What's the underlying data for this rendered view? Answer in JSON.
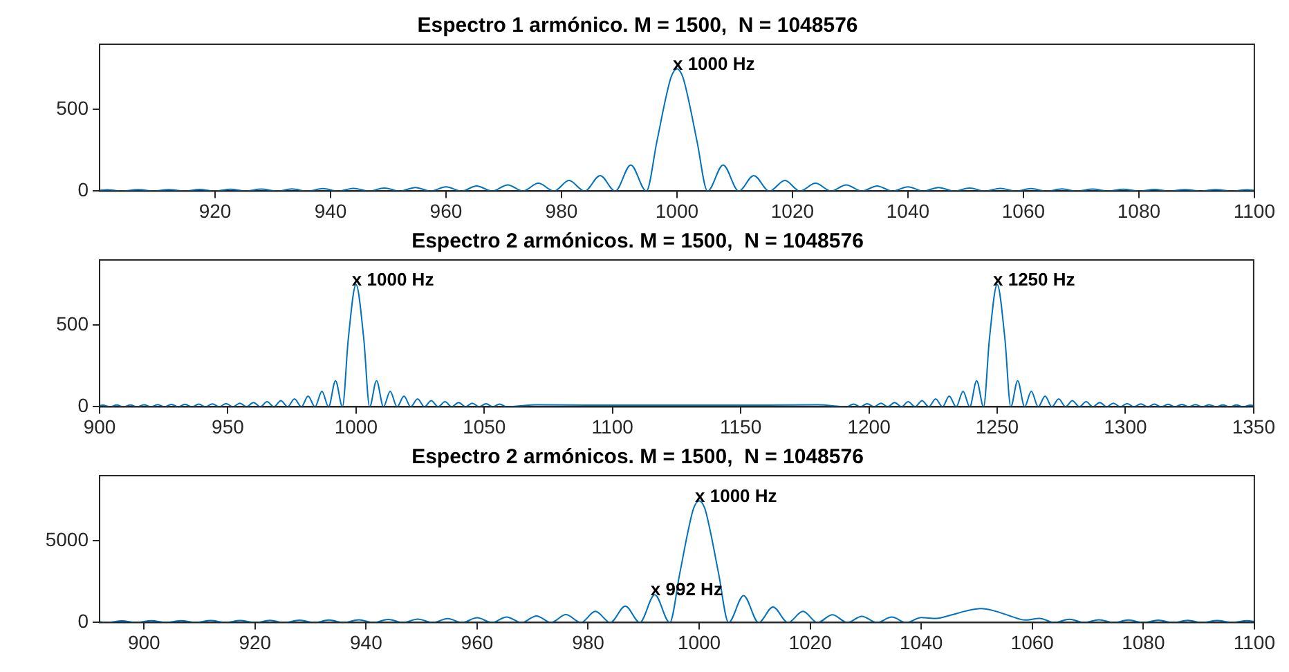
{
  "chart_data": [
    {
      "type": "line",
      "title": "Espectro 1 armónico. M = 1500,  N = 1048576",
      "xlim": [
        900,
        1100
      ],
      "xticks": [
        920,
        940,
        960,
        980,
        1000,
        1020,
        1040,
        1060,
        1080,
        1100
      ],
      "ylim": [
        0,
        900
      ],
      "yticks": [
        0,
        500
      ],
      "grid": false,
      "legend": false,
      "marker": "none",
      "annotations": [
        {
          "text": "x 1000 Hz",
          "x": 1000,
          "y": 750
        }
      ],
      "series": [
        {
          "color": "#0072bd",
          "x": [
            900,
            901.3,
            904,
            906.7,
            909.3,
            912,
            914.7,
            917.3,
            920,
            922.7,
            925.3,
            928,
            930.7,
            933.3,
            936,
            938.7,
            941.3,
            944,
            946.7,
            949.3,
            952,
            954.7,
            957.3,
            960,
            962.7,
            965.3,
            968,
            970.7,
            973.3,
            976,
            978.7,
            981.3,
            984,
            986.7,
            989.3,
            992,
            994.7,
            996.5,
            998,
            999,
            1000,
            1001,
            1002,
            1003.5,
            1005.3,
            1008,
            1010.7,
            1013.3,
            1016,
            1018.7,
            1021.3,
            1024,
            1026.7,
            1029.3,
            1032,
            1034.7,
            1037.3,
            1040,
            1042.7,
            1045.3,
            1048,
            1050.7,
            1053.3,
            1056,
            1058.7,
            1061.3,
            1064,
            1066.7,
            1069.3,
            1072,
            1074.7,
            1077.3,
            1080,
            1082.7,
            1085.3,
            1088,
            1090.7,
            1093.3,
            1096,
            1098.7,
            1100
          ],
          "values": [
            5,
            8,
            0,
            9,
            0,
            9,
            0,
            10,
            0,
            11,
            0,
            12,
            0,
            13,
            0,
            15,
            0,
            17,
            0,
            19,
            0,
            22,
            0,
            26,
            0,
            31,
            0,
            38,
            0,
            48,
            0,
            65,
            0,
            95,
            0,
            160,
            0,
            300,
            560,
            700,
            750,
            700,
            560,
            300,
            0,
            160,
            0,
            95,
            0,
            65,
            0,
            48,
            0,
            38,
            0,
            31,
            0,
            26,
            0,
            22,
            0,
            19,
            0,
            17,
            0,
            15,
            0,
            13,
            0,
            12,
            0,
            11,
            0,
            10,
            0,
            9,
            0,
            9,
            0,
            8,
            5
          ]
        }
      ]
    },
    {
      "type": "line",
      "title": "Espectro 2 armónicos. M = 1500,  N = 1048576",
      "xlim": [
        900,
        1350
      ],
      "xticks": [
        900,
        950,
        1000,
        1050,
        1100,
        1150,
        1200,
        1250,
        1300,
        1350
      ],
      "ylim": [
        0,
        900
      ],
      "yticks": [
        0,
        500
      ],
      "grid": false,
      "legend": false,
      "marker": "none",
      "annotations": [
        {
          "text": "x 1000 Hz",
          "x": 1000,
          "y": 750
        },
        {
          "text": "x 1250 Hz",
          "x": 1250,
          "y": 750
        }
      ],
      "series": [
        {
          "color": "#0072bd",
          "x": [
            900,
            901.3,
            904,
            906.7,
            909.3,
            912,
            914.7,
            917.3,
            920,
            922.7,
            925.3,
            928,
            930.7,
            933.3,
            936,
            938.7,
            941.3,
            944,
            946.7,
            949.3,
            952,
            954.7,
            957.3,
            960,
            962.7,
            965.3,
            968,
            970.7,
            973.3,
            976,
            978.7,
            981.3,
            984,
            986.7,
            989.3,
            992,
            994.7,
            997,
            1000,
            1003,
            1005.3,
            1008,
            1010.7,
            1013.3,
            1016,
            1018.7,
            1021.3,
            1024,
            1026.7,
            1029.3,
            1032,
            1034.7,
            1037.3,
            1040,
            1042.7,
            1045.3,
            1048,
            1050.7,
            1053.3,
            1056,
            1058.7,
            1070,
            1090,
            1110,
            1125,
            1140,
            1160,
            1180,
            1191.3,
            1194,
            1196.7,
            1199.3,
            1202,
            1204.7,
            1207.3,
            1210,
            1212.7,
            1215.3,
            1218,
            1220.7,
            1223.3,
            1226,
            1228.7,
            1231.3,
            1234,
            1236.7,
            1239.3,
            1242,
            1244.7,
            1247,
            1250,
            1253,
            1255.3,
            1258,
            1260.7,
            1263.3,
            1266,
            1268.7,
            1271.3,
            1274,
            1276.7,
            1279.3,
            1282,
            1284.7,
            1287.3,
            1290,
            1292.7,
            1295.3,
            1298,
            1300.7,
            1303.3,
            1306,
            1308.7,
            1311.3,
            1314,
            1316.7,
            1319.3,
            1322,
            1324.7,
            1327.3,
            1330,
            1332.7,
            1335.3,
            1338,
            1340.7,
            1343.3,
            1346,
            1348.7,
            1350
          ],
          "values": [
            7,
            10,
            0,
            11,
            0,
            11,
            0,
            12,
            0,
            13,
            0,
            14,
            0,
            15,
            0,
            16,
            0,
            18,
            0,
            20,
            0,
            22,
            0,
            26,
            0,
            31,
            0,
            38,
            0,
            48,
            0,
            65,
            0,
            95,
            0,
            160,
            0,
            420,
            750,
            420,
            0,
            160,
            0,
            95,
            0,
            65,
            0,
            48,
            0,
            38,
            0,
            31,
            0,
            26,
            0,
            22,
            0,
            19,
            0,
            17,
            0,
            12,
            10,
            10,
            10,
            10,
            10,
            12,
            0,
            17,
            0,
            19,
            0,
            22,
            0,
            26,
            0,
            31,
            0,
            38,
            0,
            48,
            0,
            65,
            0,
            95,
            0,
            160,
            0,
            420,
            750,
            420,
            0,
            160,
            0,
            95,
            0,
            65,
            0,
            48,
            0,
            38,
            0,
            31,
            0,
            26,
            0,
            22,
            0,
            20,
            0,
            18,
            0,
            16,
            0,
            15,
            0,
            14,
            0,
            13,
            0,
            12,
            0,
            11,
            0,
            11,
            0,
            10,
            7
          ]
        }
      ]
    },
    {
      "type": "line",
      "title": "Espectro 2 armónicos. M = 1500,  N = 1048576",
      "xlim": [
        892,
        1100
      ],
      "xticks": [
        900,
        920,
        940,
        960,
        980,
        1000,
        1020,
        1040,
        1060,
        1080,
        1100
      ],
      "ylim": [
        0,
        9000
      ],
      "yticks": [
        0,
        5000
      ],
      "grid": false,
      "legend": false,
      "marker": "none",
      "annotations": [
        {
          "text": "x 1000 Hz",
          "x": 1000,
          "y": 7450
        },
        {
          "text": "x 992 Hz",
          "x": 992,
          "y": 1700
        }
      ],
      "series": [
        {
          "color": "#0072bd",
          "x": [
            892,
            893.3,
            896,
            898.7,
            901.3,
            904,
            906.7,
            909.3,
            912,
            914.7,
            917.3,
            920,
            922.7,
            925.3,
            928,
            930.7,
            933.3,
            936,
            938.7,
            941.3,
            944,
            946.7,
            949.3,
            952,
            954.7,
            957.3,
            960,
            962.7,
            965.3,
            968,
            970.7,
            973.3,
            976,
            978.7,
            981.3,
            984,
            986.7,
            989.3,
            992,
            994.7,
            996.5,
            998,
            999,
            1000,
            1001,
            1002,
            1003.5,
            1005.3,
            1008,
            1010.7,
            1013.3,
            1016,
            1018.7,
            1021.3,
            1024,
            1026.7,
            1029.3,
            1032,
            1034.7,
            1037.3,
            1040,
            1042.7,
            1045.3,
            1048,
            1050.7,
            1053.3,
            1056,
            1058.7,
            1061.3,
            1064,
            1066.7,
            1069.3,
            1072,
            1074.7,
            1077.3,
            1080,
            1082.7,
            1085.3,
            1088,
            1090.7,
            1093.3,
            1096,
            1098.7,
            1100
          ],
          "values": [
            50,
            0,
            100,
            0,
            110,
            0,
            110,
            0,
            120,
            0,
            120,
            0,
            130,
            0,
            140,
            0,
            150,
            0,
            170,
            0,
            190,
            0,
            210,
            0,
            240,
            0,
            290,
            0,
            340,
            0,
            400,
            0,
            480,
            0,
            680,
            0,
            1000,
            0,
            1700,
            0,
            3000,
            5600,
            7000,
            7450,
            7000,
            5600,
            3000,
            0,
            1650,
            0,
            950,
            0,
            680,
            0,
            470,
            0,
            380,
            0,
            330,
            0,
            300,
            250,
            450,
            700,
            850,
            700,
            400,
            150,
            250,
            0,
            200,
            0,
            170,
            0,
            150,
            0,
            140,
            0,
            130,
            0,
            120,
            0,
            110,
            60
          ]
        }
      ]
    }
  ]
}
